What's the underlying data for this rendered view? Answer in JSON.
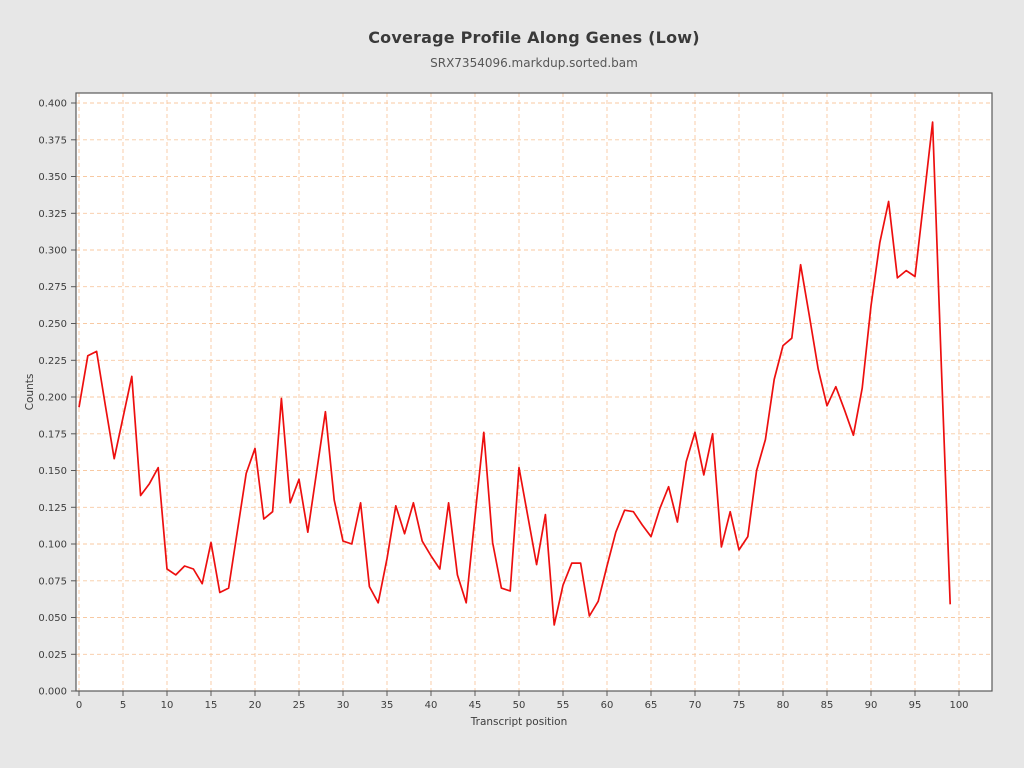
{
  "figure": {
    "title": "Coverage Profile Along Genes (Low)",
    "subtitle": "SRX7354096.markdup.sorted.bam"
  },
  "chart_data": {
    "type": "line",
    "title": "Coverage Profile Along Genes (Low)",
    "subtitle": "SRX7354096.markdup.sorted.bam",
    "xlabel": "Transcript position",
    "ylabel": "Counts",
    "x": [
      0,
      1,
      2,
      3,
      4,
      5,
      6,
      7,
      8,
      9,
      10,
      11,
      12,
      13,
      14,
      15,
      16,
      17,
      18,
      19,
      20,
      21,
      22,
      23,
      24,
      25,
      26,
      27,
      28,
      29,
      30,
      31,
      32,
      33,
      34,
      35,
      36,
      37,
      38,
      39,
      40,
      41,
      42,
      43,
      44,
      45,
      46,
      47,
      48,
      49,
      50,
      51,
      52,
      53,
      54,
      55,
      56,
      57,
      58,
      59,
      60,
      61,
      62,
      63,
      64,
      65,
      66,
      67,
      68,
      69,
      70,
      71,
      72,
      73,
      74,
      75,
      76,
      77,
      78,
      79,
      80,
      81,
      82,
      83,
      84,
      85,
      86,
      87,
      88,
      89,
      90,
      91,
      92,
      93,
      94,
      95,
      96,
      97,
      98,
      99
    ],
    "y": [
      0.193,
      0.228,
      0.231,
      0.194,
      0.158,
      0.186,
      0.214,
      0.133,
      0.141,
      0.152,
      0.083,
      0.079,
      0.085,
      0.083,
      0.073,
      0.101,
      0.067,
      0.07,
      0.109,
      0.148,
      0.165,
      0.117,
      0.122,
      0.199,
      0.128,
      0.144,
      0.108,
      0.149,
      0.19,
      0.13,
      0.102,
      0.1,
      0.128,
      0.071,
      0.06,
      0.09,
      0.126,
      0.107,
      0.128,
      0.102,
      0.092,
      0.083,
      0.128,
      0.079,
      0.06,
      0.119,
      0.176,
      0.101,
      0.07,
      0.068,
      0.152,
      0.119,
      0.086,
      0.12,
      0.045,
      0.072,
      0.087,
      0.087,
      0.051,
      0.061,
      0.085,
      0.108,
      0.123,
      0.122,
      0.113,
      0.105,
      0.124,
      0.139,
      0.115,
      0.156,
      0.176,
      0.147,
      0.175,
      0.098,
      0.122,
      0.096,
      0.105,
      0.15,
      0.171,
      0.212,
      0.235,
      0.24,
      0.29,
      0.255,
      0.219,
      0.194,
      0.207,
      0.191,
      0.174,
      0.206,
      0.262,
      0.305,
      0.333,
      0.281,
      0.286,
      0.282,
      0.334,
      0.387,
      0.22,
      0.059
    ],
    "xlim": [
      0,
      104
    ],
    "ylim": [
      0,
      0.407
    ],
    "x_ticks": {
      "min": 0,
      "max": 100,
      "step": 5
    },
    "y_ticks": {
      "min": 0.0,
      "max": 0.4,
      "step": 0.025,
      "decimals": 3
    },
    "grid": true,
    "grid_style": "dashed",
    "legend_position": "none",
    "line_color": "#ed0f0f",
    "grid_color": "#f8c9a2",
    "frame_color": "#595959",
    "background_color": "#e7e7e7",
    "plot_background": "#ffffff"
  }
}
